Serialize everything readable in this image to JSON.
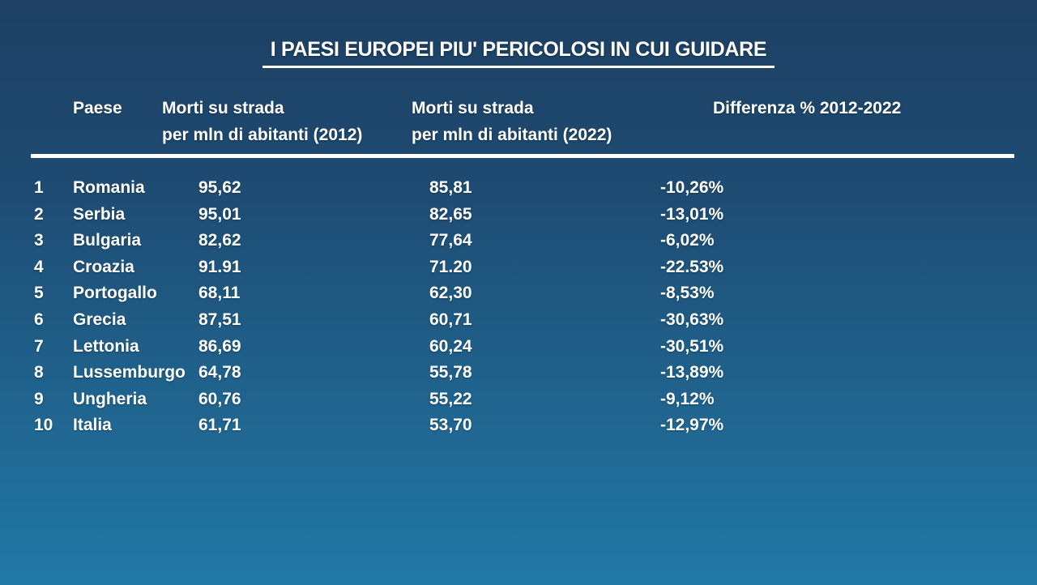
{
  "slide": {
    "title": "I PAESI EUROPEI PIU' PERICOLOSI IN CUI GUIDARE",
    "colors": {
      "background_top": "#1d4063",
      "background_bottom": "#2179a6",
      "text": "#ffffff",
      "divider": "#ffffff"
    },
    "headers": {
      "paese": "Paese",
      "m2012_line1": "Morti su strada",
      "m2012_line2": "per mln di abitanti (2012)",
      "m2022_line1": "Morti su strada",
      "m2022_line2": "per mln di abitanti (2022)",
      "diff": "Differenza % 2012-2022"
    }
  },
  "chart_data": {
    "type": "table",
    "title": "I PAESI EUROPEI PIU' PERICOLOSI IN CUI GUIDARE",
    "columns": [
      "Paese",
      "Morti su strada per mln di abitanti (2012)",
      "Morti su strada per mln di abitanti (2022)",
      "Differenza % 2012-2022"
    ],
    "rows": [
      {
        "rank": "1",
        "country": "Romania",
        "deaths_2012": "95,62",
        "deaths_2022": "85,81",
        "diff_pct": "-10,26%"
      },
      {
        "rank": "2",
        "country": "Serbia",
        "deaths_2012": "95,01",
        "deaths_2022": "82,65",
        "diff_pct": "-13,01%"
      },
      {
        "rank": "3",
        "country": "Bulgaria",
        "deaths_2012": "82,62",
        "deaths_2022": "77,64",
        "diff_pct": "-6,02%"
      },
      {
        "rank": "4",
        "country": "Croazia",
        "deaths_2012": "91.91",
        "deaths_2022": "71.20",
        "diff_pct": "-22.53%"
      },
      {
        "rank": "5",
        "country": "Portogallo",
        "deaths_2012": "68,11",
        "deaths_2022": "62,30",
        "diff_pct": "-8,53%"
      },
      {
        "rank": "6",
        "country": "Grecia",
        "deaths_2012": "87,51",
        "deaths_2022": "60,71",
        "diff_pct": "-30,63%"
      },
      {
        "rank": "7",
        "country": "Lettonia",
        "deaths_2012": "86,69",
        "deaths_2022": "60,24",
        "diff_pct": "-30,51%"
      },
      {
        "rank": "8",
        "country": "Lussemburgo",
        "deaths_2012": "64,78",
        "deaths_2022": "55,78",
        "diff_pct": "-13,89%"
      },
      {
        "rank": "9",
        "country": "Ungheria",
        "deaths_2012": "60,76",
        "deaths_2022": "55,22",
        "diff_pct": "-9,12%"
      },
      {
        "rank": "10",
        "country": "Italia",
        "deaths_2012": "61,71",
        "deaths_2022": "53,70",
        "diff_pct": "-12,97%"
      }
    ]
  }
}
